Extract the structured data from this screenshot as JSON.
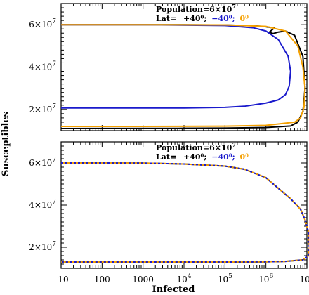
{
  "figure": {
    "ylabel": "Susceptibles",
    "xlabel": "Infected"
  },
  "chart_data": [
    {
      "type": "line",
      "panel": "top",
      "x_scale": "log",
      "xlim": [
        10,
        10000000
      ],
      "ylim": [
        10000000,
        70000000
      ],
      "ytick_values": [
        20000000,
        40000000,
        60000000
      ],
      "ytick_labels": [
        {
          "base": "2×10",
          "exp": "7"
        },
        {
          "base": "4×10",
          "exp": "7"
        },
        {
          "base": "6×10",
          "exp": "7"
        }
      ],
      "annotation": {
        "population_prefix": "Population=6×10",
        "population_exp": "7",
        "lat_prefix": "Lat=",
        "lat_a": "+40⁰;",
        "lat_b": "−40⁰;",
        "lat_c": "0⁰"
      },
      "series": [
        {
          "color": "#000000",
          "points": [
            [
              10,
              59990000
            ],
            [
              1000,
              59980000
            ],
            [
              10000,
              59960000
            ],
            [
              100000,
              59850000
            ],
            [
              500000,
              59500000
            ],
            [
              1000000,
              59000000
            ],
            [
              1600000,
              58400000
            ],
            [
              1200000,
              56400000
            ],
            [
              1500000,
              55800000
            ],
            [
              2000000,
              56500000
            ],
            [
              3000000,
              57000000
            ],
            [
              5000000,
              55000000
            ],
            [
              8000000,
              45000000
            ],
            [
              9000000,
              30000000
            ],
            [
              8000000,
              19000000
            ],
            [
              6000000,
              14000000
            ],
            [
              4000000,
              12200000
            ],
            [
              1000000,
              11500000
            ],
            [
              100000,
              11200000
            ],
            [
              10000,
              11100000
            ],
            [
              10,
              11000000
            ]
          ]
        },
        {
          "color": "#1a1acc",
          "points": [
            [
              10,
              59990000
            ],
            [
              1000,
              59980000
            ],
            [
              100000,
              59600000
            ],
            [
              500000,
              58500000
            ],
            [
              1000000,
              57000000
            ],
            [
              2000000,
              53000000
            ],
            [
              3500000,
              45000000
            ],
            [
              4000000,
              38000000
            ],
            [
              3700000,
              31000000
            ],
            [
              3000000,
              27000000
            ],
            [
              2000000,
              24500000
            ],
            [
              1000000,
              23000000
            ],
            [
              300000,
              21500000
            ],
            [
              100000,
              21000000
            ],
            [
              10000,
              20700000
            ],
            [
              10,
              20700000
            ]
          ]
        },
        {
          "color": "#f5a000",
          "points": [
            [
              10,
              59990000
            ],
            [
              1000,
              59980000
            ],
            [
              100000,
              59900000
            ],
            [
              1000000,
              59200000
            ],
            [
              3000000,
              57000000
            ],
            [
              6000000,
              50000000
            ],
            [
              8000000,
              40000000
            ],
            [
              9000000,
              30000000
            ],
            [
              8500000,
              21000000
            ],
            [
              7000000,
              16000000
            ],
            [
              5000000,
              14000000
            ],
            [
              1000000,
              12500000
            ],
            [
              100000,
              12100000
            ],
            [
              1000,
              12000000
            ],
            [
              10,
              12000000
            ]
          ]
        }
      ]
    },
    {
      "type": "line",
      "panel": "bottom",
      "x_scale": "log",
      "xlim": [
        10,
        10000000
      ],
      "ylim": [
        10000000,
        70000000
      ],
      "xtick_values": [
        10,
        100,
        1000,
        10000,
        100000,
        1000000,
        10000000
      ],
      "xtick_labels": [
        {
          "base": "10",
          "exp": ""
        },
        {
          "base": "100",
          "exp": ""
        },
        {
          "base": "1000",
          "exp": ""
        },
        {
          "base": "10",
          "exp": "4"
        },
        {
          "base": "10",
          "exp": "5"
        },
        {
          "base": "10",
          "exp": "6"
        },
        {
          "base": "10",
          "exp": "7"
        }
      ],
      "ytick_values": [
        20000000,
        40000000,
        60000000
      ],
      "ytick_labels": [
        {
          "base": "2×10",
          "exp": "7"
        },
        {
          "base": "4×10",
          "exp": "7"
        },
        {
          "base": "6×10",
          "exp": "7"
        }
      ],
      "annotation": {
        "population_prefix": "Population=6×10",
        "population_exp": "7",
        "lat_prefix": "Lat=",
        "lat_a": "+40⁰;",
        "lat_b": "−40⁰;",
        "lat_c": "0⁰"
      },
      "series": [
        {
          "color": "#000000",
          "dash": "",
          "points": [
            [
              10,
              60000000
            ],
            [
              1000,
              59900000
            ],
            [
              10000,
              59500000
            ],
            [
              100000,
              58500000
            ],
            [
              300000,
              57000000
            ],
            [
              1000000,
              53000000
            ],
            [
              2000000,
              48000000
            ],
            [
              4000000,
              43000000
            ],
            [
              7000000,
              38000000
            ],
            [
              9000000,
              33000000
            ],
            [
              11000000,
              27000000
            ],
            [
              11500000,
              20000000
            ],
            [
              11000000,
              16000000
            ],
            [
              8000000,
              14000000
            ],
            [
              3000000,
              13300000
            ],
            [
              1000000,
              13100000
            ],
            [
              100000,
              13000000
            ],
            [
              10,
              13000000
            ]
          ]
        },
        {
          "color": "#1a1acc",
          "dash": "3 3",
          "points": [
            [
              10,
              60000000
            ],
            [
              1000,
              59900000
            ],
            [
              10000,
              59500000
            ],
            [
              100000,
              58500000
            ],
            [
              300000,
              57000000
            ],
            [
              1000000,
              53000000
            ],
            [
              2000000,
              48000000
            ],
            [
              4000000,
              43000000
            ],
            [
              7000000,
              38000000
            ],
            [
              9000000,
              33000000
            ],
            [
              11000000,
              27000000
            ],
            [
              11500000,
              20000000
            ],
            [
              11000000,
              16000000
            ],
            [
              8000000,
              14000000
            ],
            [
              3000000,
              13300000
            ],
            [
              1000000,
              13100000
            ],
            [
              100000,
              13000000
            ],
            [
              10,
              13000000
            ]
          ]
        },
        {
          "color": "#f5a000",
          "dash": "3 3",
          "offset": 3,
          "points": [
            [
              10,
              60000000
            ],
            [
              1000,
              59900000
            ],
            [
              10000,
              59500000
            ],
            [
              100000,
              58500000
            ],
            [
              300000,
              57000000
            ],
            [
              1000000,
              53000000
            ],
            [
              2000000,
              48000000
            ],
            [
              4000000,
              43000000
            ],
            [
              7000000,
              38000000
            ],
            [
              9000000,
              33000000
            ],
            [
              11000000,
              27000000
            ],
            [
              11500000,
              20000000
            ],
            [
              11000000,
              16000000
            ],
            [
              8000000,
              14000000
            ],
            [
              3000000,
              13300000
            ],
            [
              1000000,
              13100000
            ],
            [
              100000,
              13000000
            ],
            [
              10,
              13000000
            ]
          ]
        }
      ]
    }
  ]
}
